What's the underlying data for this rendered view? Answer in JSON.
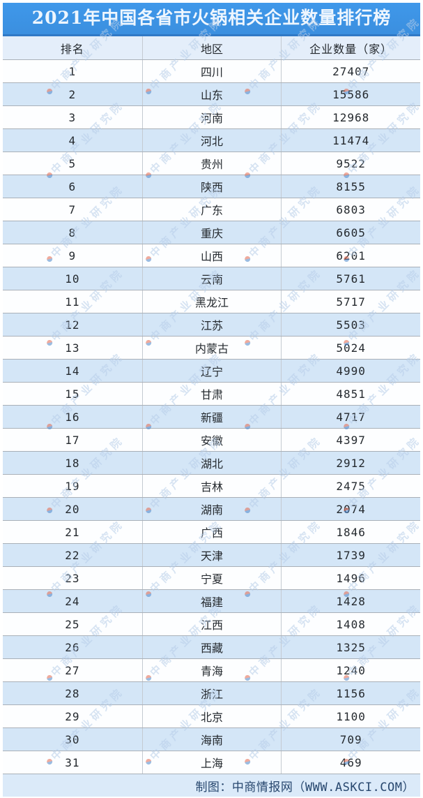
{
  "title": "2021年中国各省市火锅相关企业数量排行榜",
  "table": {
    "headers": [
      "排名",
      "地区",
      "企业数量（家）"
    ],
    "rows": [
      {
        "rank": "1",
        "region": "四川",
        "count": "27407"
      },
      {
        "rank": "2",
        "region": "山东",
        "count": "15586"
      },
      {
        "rank": "3",
        "region": "河南",
        "count": "12968"
      },
      {
        "rank": "4",
        "region": "河北",
        "count": "11474"
      },
      {
        "rank": "5",
        "region": "贵州",
        "count": "9522"
      },
      {
        "rank": "6",
        "region": "陕西",
        "count": "8155"
      },
      {
        "rank": "7",
        "region": "广东",
        "count": "6803"
      },
      {
        "rank": "8",
        "region": "重庆",
        "count": "6605"
      },
      {
        "rank": "9",
        "region": "山西",
        "count": "6201"
      },
      {
        "rank": "10",
        "region": "云南",
        "count": "5761"
      },
      {
        "rank": "11",
        "region": "黑龙江",
        "count": "5717"
      },
      {
        "rank": "12",
        "region": "江苏",
        "count": "5503"
      },
      {
        "rank": "13",
        "region": "内蒙古",
        "count": "5024"
      },
      {
        "rank": "14",
        "region": "辽宁",
        "count": "4990"
      },
      {
        "rank": "15",
        "region": "甘肃",
        "count": "4851"
      },
      {
        "rank": "16",
        "region": "新疆",
        "count": "4717"
      },
      {
        "rank": "17",
        "region": "安徽",
        "count": "4397"
      },
      {
        "rank": "18",
        "region": "湖北",
        "count": "2912"
      },
      {
        "rank": "19",
        "region": "吉林",
        "count": "2475"
      },
      {
        "rank": "20",
        "region": "湖南",
        "count": "2074"
      },
      {
        "rank": "21",
        "region": "广西",
        "count": "1846"
      },
      {
        "rank": "22",
        "region": "天津",
        "count": "1739"
      },
      {
        "rank": "23",
        "region": "宁夏",
        "count": "1496"
      },
      {
        "rank": "24",
        "region": "福建",
        "count": "1428"
      },
      {
        "rank": "25",
        "region": "江西",
        "count": "1408"
      },
      {
        "rank": "26",
        "region": "西藏",
        "count": "1325"
      },
      {
        "rank": "27",
        "region": "青海",
        "count": "1240"
      },
      {
        "rank": "28",
        "region": "浙江",
        "count": "1156"
      },
      {
        "rank": "29",
        "region": "北京",
        "count": "1100"
      },
      {
        "rank": "30",
        "region": "海南",
        "count": "709"
      },
      {
        "rank": "31",
        "region": "上海",
        "count": "469"
      }
    ]
  },
  "footer": {
    "credit": "制图：中商情报网（WWW.ASKCI.COM）"
  },
  "watermark": {
    "text": "中商产业研究院",
    "logo": "pie-circle-logo"
  },
  "colors": {
    "title_bg": "#3f98ea",
    "title_text": "#eef6fe",
    "header_bg": "#e4eefa",
    "row_odd_bg": "#fdfeff",
    "row_even_bg": "#d4e6f7",
    "footer_bg": "#dbeaf9",
    "footer_text": "#27476e",
    "watermark_text": "#b7cee9",
    "wm_red": "#e4684e",
    "wm_blue": "#4c88cc"
  },
  "chart_data": {
    "type": "table",
    "title": "2021年中国各省市火锅相关企业数量排行榜",
    "columns": [
      "排名",
      "地区",
      "企业数量（家）"
    ],
    "categories": [
      "四川",
      "山东",
      "河南",
      "河北",
      "贵州",
      "陕西",
      "广东",
      "重庆",
      "山西",
      "云南",
      "黑龙江",
      "江苏",
      "内蒙古",
      "辽宁",
      "甘肃",
      "新疆",
      "安徽",
      "湖北",
      "吉林",
      "湖南",
      "广西",
      "天津",
      "宁夏",
      "福建",
      "江西",
      "西藏",
      "青海",
      "浙江",
      "北京",
      "海南",
      "上海"
    ],
    "values": [
      27407,
      15586,
      12968,
      11474,
      9522,
      8155,
      6803,
      6605,
      6201,
      5761,
      5717,
      5503,
      5024,
      4990,
      4851,
      4717,
      4397,
      2912,
      2475,
      2074,
      1846,
      1739,
      1496,
      1428,
      1408,
      1325,
      1240,
      1156,
      1100,
      709,
      469
    ],
    "source_credit": "制图：中商情报网（WWW.ASKCI.COM）"
  }
}
